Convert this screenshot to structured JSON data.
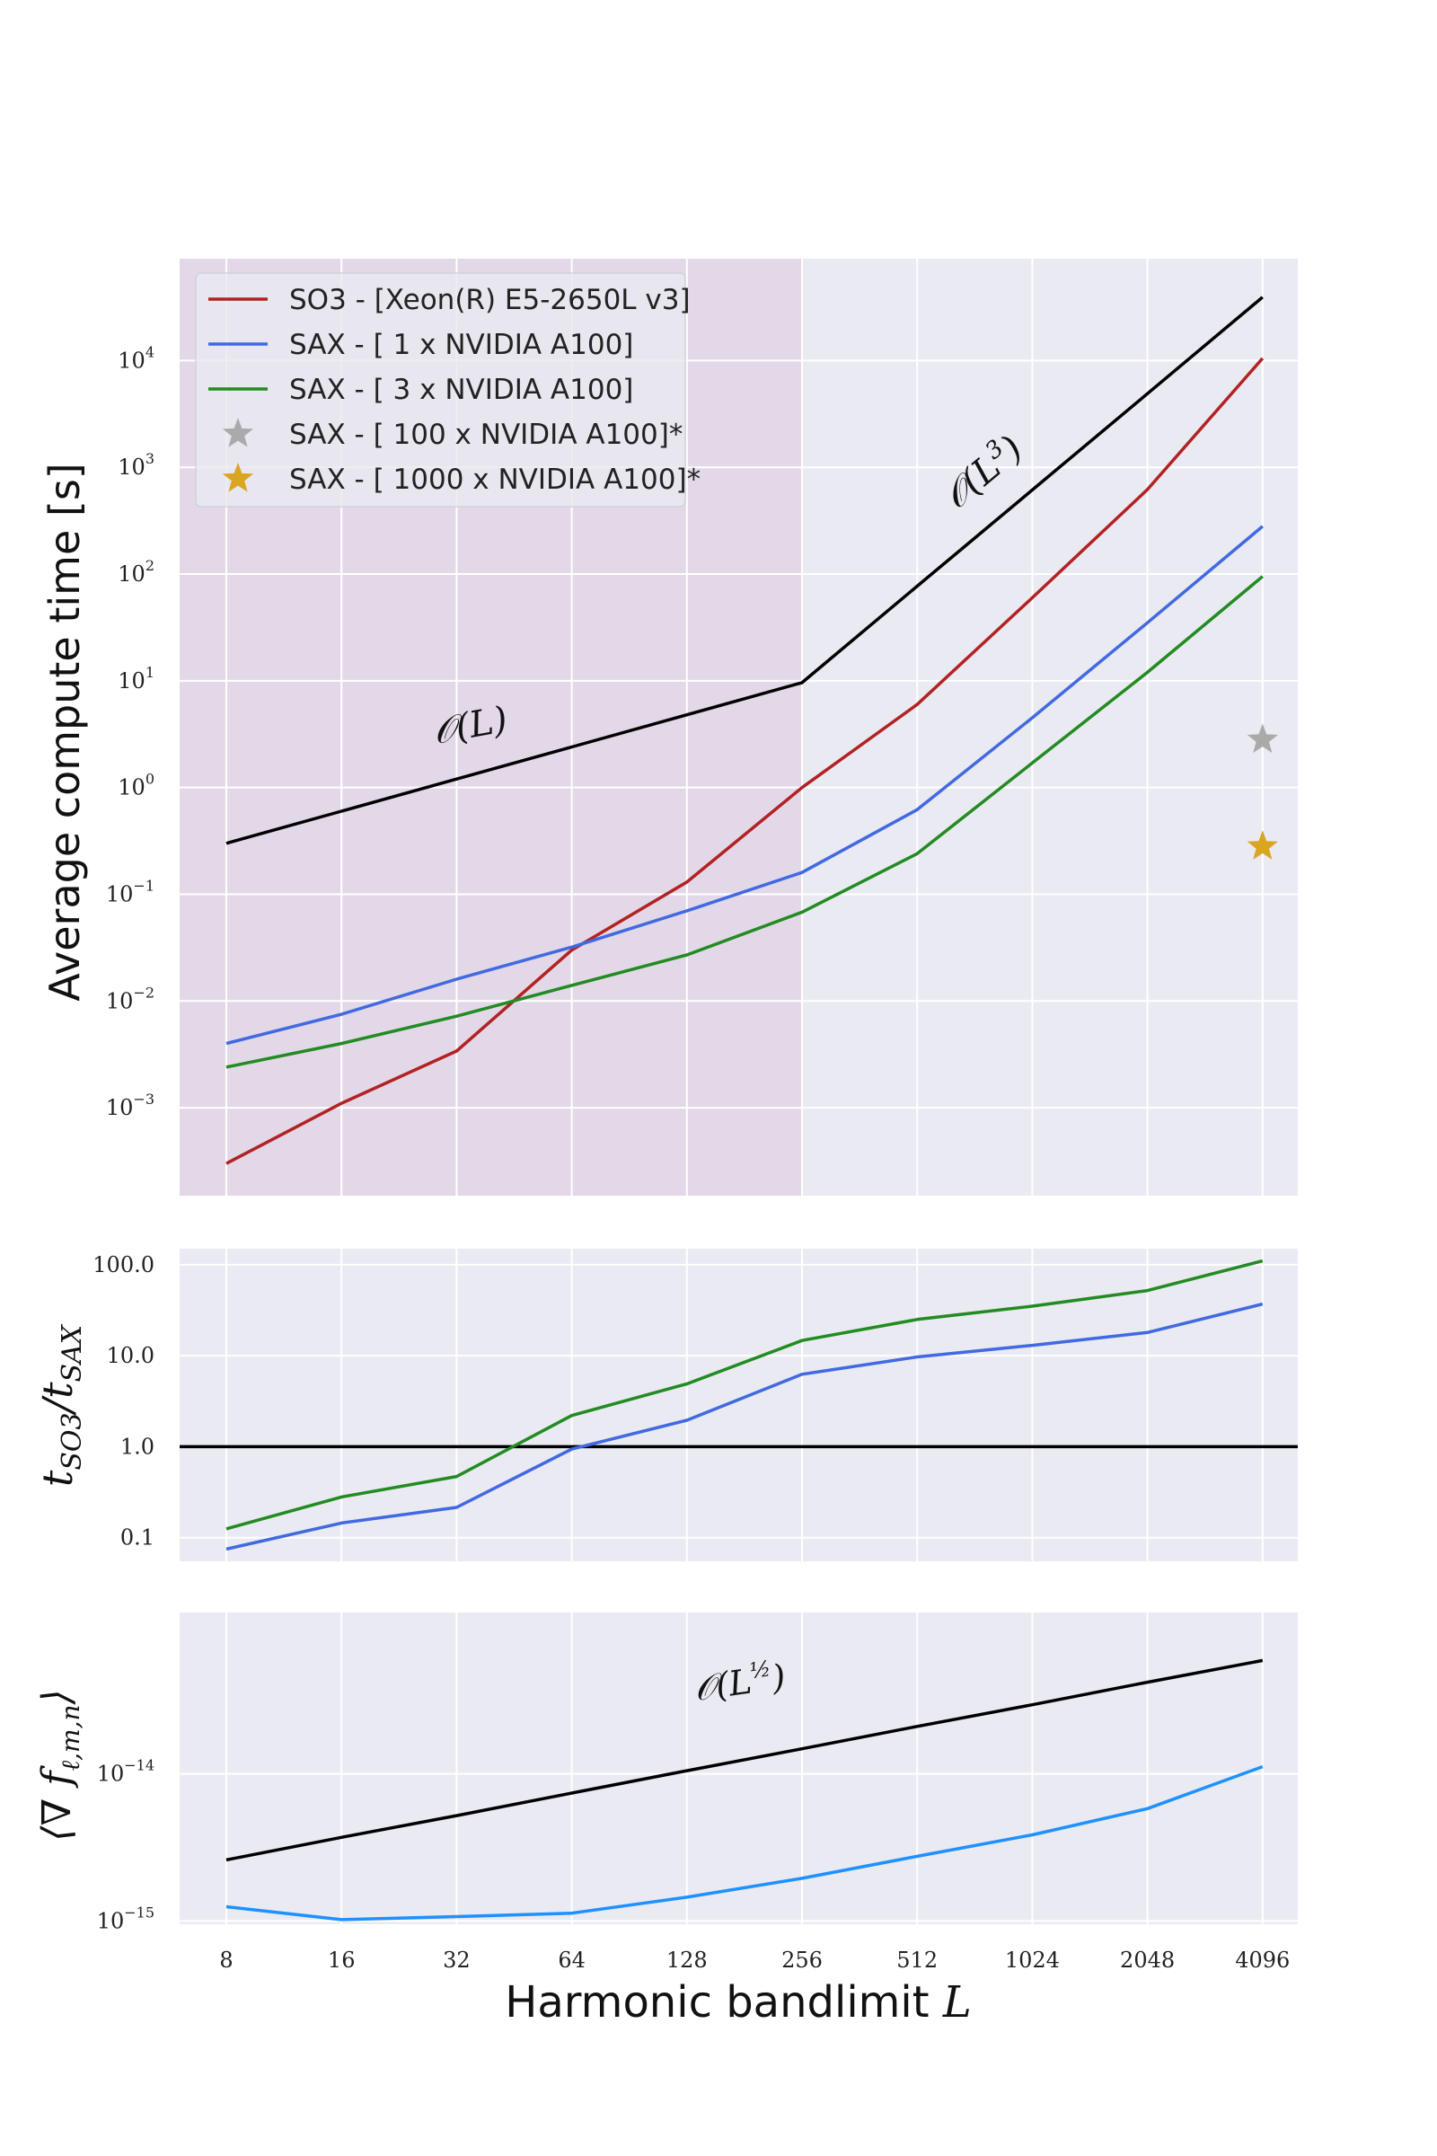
{
  "x_ticks": [
    "8",
    "16",
    "32",
    "64",
    "128",
    "256",
    "512",
    "1024",
    "2048",
    "4096"
  ],
  "x_axis_label": "Harmonic bandlimit",
  "x_axis_symbol": "L",
  "colors": {
    "so3": "#b22222",
    "sax1": "#4169e1",
    "sax3": "#228b22",
    "ref": "#000000",
    "grad": "#1e90ff",
    "star100": "#aaaaaa",
    "star1000": "#daa520",
    "panel_bg": "#eaeaf2",
    "shade": "#e3d8e8",
    "grid": "#ffffff"
  },
  "chart_data": [
    {
      "type": "line",
      "ylabel": "Average compute time [s]",
      "yscale": "log",
      "ylim": [
        0.00015,
        90000
      ],
      "y_ticks": [
        {
          "base": "10",
          "exp": "4",
          "value": 10000
        },
        {
          "base": "10",
          "exp": "3",
          "value": 1000
        },
        {
          "base": "10",
          "exp": "2",
          "value": 100
        },
        {
          "base": "10",
          "exp": "1",
          "value": 10
        },
        {
          "base": "10",
          "exp": "0",
          "value": 1
        },
        {
          "base": "10",
          "exp": "−1",
          "value": 0.1
        },
        {
          "base": "10",
          "exp": "−2",
          "value": 0.01
        },
        {
          "base": "10",
          "exp": "−3",
          "value": 0.001
        }
      ],
      "shaded_region_x": [
        8,
        256
      ],
      "grid": true,
      "legend_position": "upper-left",
      "x": [
        8,
        16,
        32,
        64,
        128,
        256,
        512,
        1024,
        2048,
        4096
      ],
      "series": [
        {
          "name": "SO3 - [Xeon(R) E5-2650L v3]",
          "color_key": "so3",
          "values": [
            0.0003,
            0.0011,
            0.0034,
            0.03,
            0.13,
            1.0,
            6.0,
            60,
            620,
            10500
          ]
        },
        {
          "name": "SAX - [ 1 x NVIDIA A100]",
          "color_key": "sax1",
          "values": [
            0.004,
            0.0075,
            0.016,
            0.032,
            0.07,
            0.16,
            0.62,
            4.5,
            35,
            280
          ]
        },
        {
          "name": "SAX - [ 3 x NVIDIA A100]",
          "color_key": "sax3",
          "values": [
            0.0024,
            0.004,
            0.0072,
            0.014,
            0.027,
            0.068,
            0.24,
            1.7,
            12,
            95
          ]
        },
        {
          "name": "",
          "color_key": "ref",
          "values": [
            0.3,
            0.6,
            1.2,
            2.4,
            4.8,
            9.6,
            77,
            614,
            4900,
            39300
          ]
        }
      ],
      "markers": [
        {
          "name": "SAX - [ 100 x NVIDIA A100]*",
          "color_key": "star100",
          "x": 4096,
          "y": 2.8
        },
        {
          "name": "SAX - [ 1000 x NVIDIA A100]*",
          "color_key": "star1000",
          "x": 4096,
          "y": 0.28
        }
      ],
      "annotations": [
        {
          "text": "O(L)",
          "x": 40,
          "y": 2.5
        },
        {
          "text": "O(L³)",
          "x": 1024,
          "y": 600
        }
      ]
    },
    {
      "type": "line",
      "ylabel": "t_SO3 / t_SAX",
      "yscale": "log",
      "ylim": [
        0.055,
        150
      ],
      "y_ticks": [
        {
          "label": "100.0",
          "value": 100
        },
        {
          "label": "10.0",
          "value": 10
        },
        {
          "label": "1.0",
          "value": 1
        },
        {
          "label": "0.1",
          "value": 0.1
        }
      ],
      "grid": true,
      "x": [
        8,
        16,
        32,
        64,
        128,
        256,
        512,
        1024,
        2048,
        4096
      ],
      "hline": 1.0,
      "series": [
        {
          "name": "",
          "color_key": "sax3",
          "values": [
            0.125,
            0.28,
            0.47,
            2.2,
            4.9,
            14.7,
            25,
            35,
            52,
            110
          ]
        },
        {
          "name": "",
          "color_key": "sax1",
          "values": [
            0.075,
            0.145,
            0.215,
            0.94,
            1.95,
            6.25,
            9.7,
            13,
            18,
            37
          ]
        }
      ]
    },
    {
      "type": "line",
      "ylabel": "⟨∇ f_ℓ,m,n⟩",
      "yscale": "log",
      "ylim": [
        9.5e-16,
        1.25e-13
      ],
      "y_ticks": [
        {
          "base": "10",
          "exp": "−14",
          "value": 1e-14
        },
        {
          "base": "10",
          "exp": "−15",
          "value": 1e-15
        }
      ],
      "grid": true,
      "x": [
        8,
        16,
        32,
        64,
        128,
        256,
        512,
        1024,
        2048,
        4096
      ],
      "series": [
        {
          "name": "",
          "color_key": "ref",
          "values": [
            2.6e-15,
            3.7e-15,
            5.2e-15,
            7.4e-15,
            1.05e-14,
            1.48e-14,
            2.1e-14,
            2.95e-14,
            4.2e-14,
            5.9e-14
          ]
        },
        {
          "name": "",
          "color_key": "grad",
          "values": [
            1.25e-15,
            1.02e-15,
            1.07e-15,
            1.13e-15,
            1.45e-15,
            1.95e-15,
            2.75e-15,
            3.85e-15,
            5.8e-15,
            1.12e-14
          ]
        }
      ],
      "annotations": [
        {
          "text": "O(L^1/2)",
          "x": 128,
          "y": 3.2e-14
        }
      ]
    }
  ]
}
